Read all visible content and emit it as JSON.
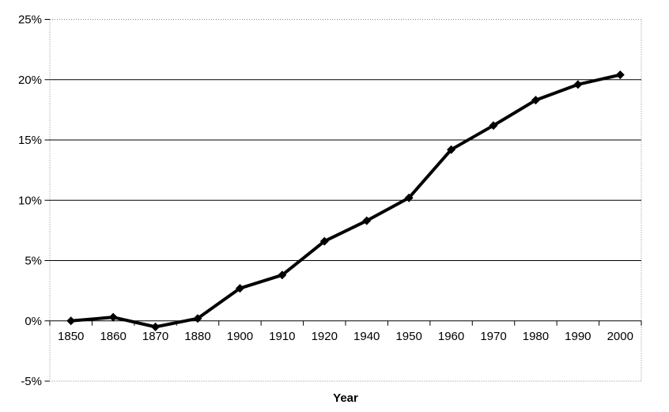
{
  "chart_data": {
    "type": "line",
    "title": "",
    "xlabel": "Year",
    "ylabel": "",
    "categories": [
      "1850",
      "1860",
      "1870",
      "1880",
      "1900",
      "1910",
      "1920",
      "1940",
      "1950",
      "1960",
      "1970",
      "1980",
      "1990",
      "2000"
    ],
    "values": [
      0.0,
      0.3,
      -0.5,
      0.2,
      2.7,
      3.8,
      6.6,
      8.3,
      10.2,
      14.2,
      16.2,
      18.3,
      19.6,
      20.4
    ],
    "ylim": [
      -5,
      25
    ],
    "ytick_step": 5,
    "ytick_labels_top_to_bottom": [
      "25%",
      "20%",
      "15%",
      "10%",
      "5%",
      "0%",
      "-5%"
    ],
    "grid": "horizontal-major",
    "legend_position": "none",
    "marker": "diamond",
    "colors": {
      "series": "#000000",
      "gridline": "#000000",
      "axis_tick": "#000000",
      "plot_border": "#848484",
      "text": "#000000",
      "background": "#ffffff"
    }
  }
}
